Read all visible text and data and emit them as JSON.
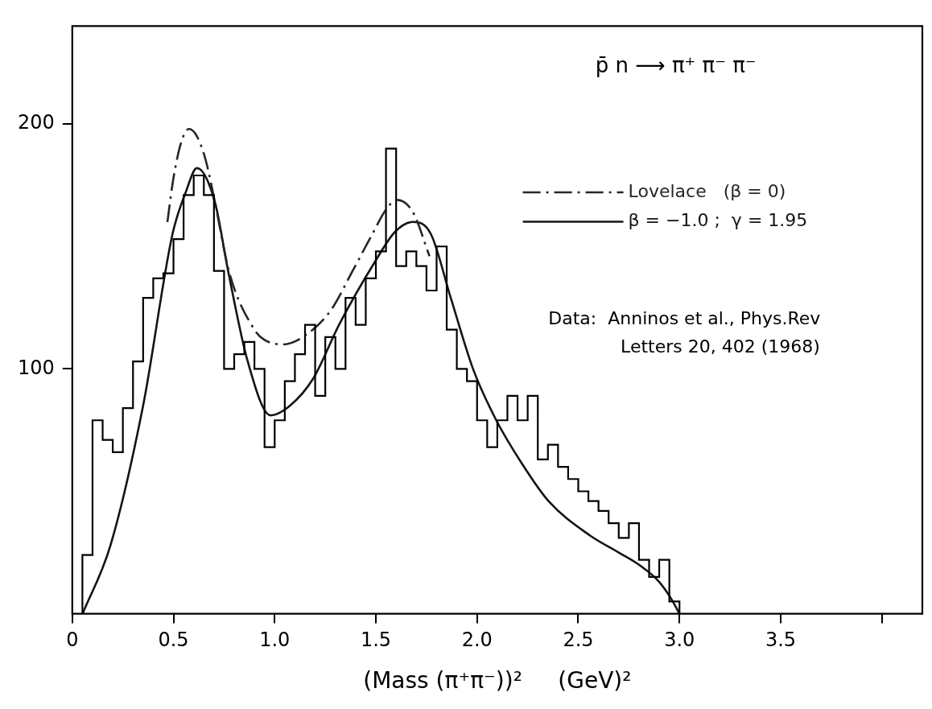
{
  "chart_data": {
    "type": "histogram",
    "xlabel": "(Mass (π⁺π⁻))²     (GeV)²",
    "bins": [
      0.05,
      0.1,
      0.15,
      0.2,
      0.25,
      0.3,
      0.35,
      0.4,
      0.45,
      0.5,
      0.55,
      0.6,
      0.65,
      0.7,
      0.75,
      0.8,
      0.85,
      0.9,
      0.95,
      1.0,
      1.05,
      1.1,
      1.15,
      1.2,
      1.25,
      1.3,
      1.35,
      1.4,
      1.45,
      1.5,
      1.55,
      1.6,
      1.65,
      1.7,
      1.75,
      1.8,
      1.85,
      1.9,
      1.95,
      2.0,
      2.05,
      2.1,
      2.15,
      2.2,
      2.25,
      2.3,
      2.35,
      2.4,
      2.45,
      2.5,
      2.55,
      2.6,
      2.65,
      2.7,
      2.75,
      2.8,
      2.85,
      2.9,
      2.95,
      3.0
    ],
    "values": [
      24,
      79,
      71,
      66,
      84,
      103,
      129,
      137,
      139,
      153,
      171,
      179,
      171,
      140,
      100,
      106,
      111,
      100,
      68,
      79,
      95,
      106,
      118,
      89,
      113,
      100,
      129,
      118,
      137,
      148,
      190,
      142,
      148,
      142,
      132,
      150,
      116,
      100,
      95,
      79,
      68,
      79,
      89,
      79,
      89,
      63,
      69,
      60,
      55,
      50,
      46,
      42,
      37,
      31,
      37,
      22,
      15,
      22,
      5
    ],
    "color": "#000000",
    "series": [
      {
        "name": "Lovelace   (β = 0)",
        "type": "line",
        "color": "#262626",
        "line_style": "dashed",
        "x": [
          0.47,
          0.5,
          0.54,
          0.576,
          0.616,
          0.66,
          0.705,
          0.777,
          0.9,
          0.947,
          1.043,
          1.157,
          1.278,
          1.385,
          1.482,
          1.55,
          1.603,
          1.683,
          1.765
        ],
        "values": [
          160,
          178,
          193,
          198,
          195,
          185,
          168,
          139,
          116,
          112,
          110,
          114,
          124,
          140,
          155,
          165,
          169,
          164,
          146
        ]
      },
      {
        "name": "β = −1.0 ;  γ = 1.95",
        "type": "line",
        "color": "#141414",
        "line_style": "solid",
        "x": [
          0.051,
          0.189,
          0.35,
          0.495,
          0.56,
          0.616,
          0.705,
          0.77,
          0.867,
          0.98,
          1.076,
          1.19,
          1.318,
          1.49,
          1.595,
          1.683,
          1.772,
          1.87,
          1.98,
          2.095,
          2.224,
          2.353,
          2.557,
          2.7,
          2.8,
          2.9,
          2.96,
          3.0
        ],
        "values": [
          0,
          28,
          85,
          155,
          172,
          182,
          168,
          140,
          103,
          81,
          85,
          96,
          118,
          143,
          156,
          160,
          155,
          129,
          100,
          79,
          61,
          46,
          32,
          25,
          20,
          13,
          6,
          0
        ]
      }
    ],
    "xlim": [
      0,
      4.2
    ],
    "xticks": [
      0,
      {
        "value": 0.5,
        "label": "0.5"
      },
      {
        "value": 1,
        "label": "1.0"
      },
      {
        "value": 1.5,
        "label": "1.5"
      },
      {
        "value": 2,
        "label": "2.0"
      },
      {
        "value": 2.5,
        "label": "2.5"
      },
      {
        "value": 3,
        "label": "3.0"
      },
      {
        "value": 3.5,
        "label": "3.5"
      },
      {
        "value": 4,
        "label": null
      }
    ],
    "ylim": [
      0,
      240
    ],
    "yticks": [
      100,
      200
    ],
    "legend": "top right",
    "annotations": [
      "p̄ n ⟶ π⁺ π⁻ π⁻",
      "Data:  Anninos et al., Phys.Rev\nLetters 20, 402 (1968)"
    ]
  }
}
